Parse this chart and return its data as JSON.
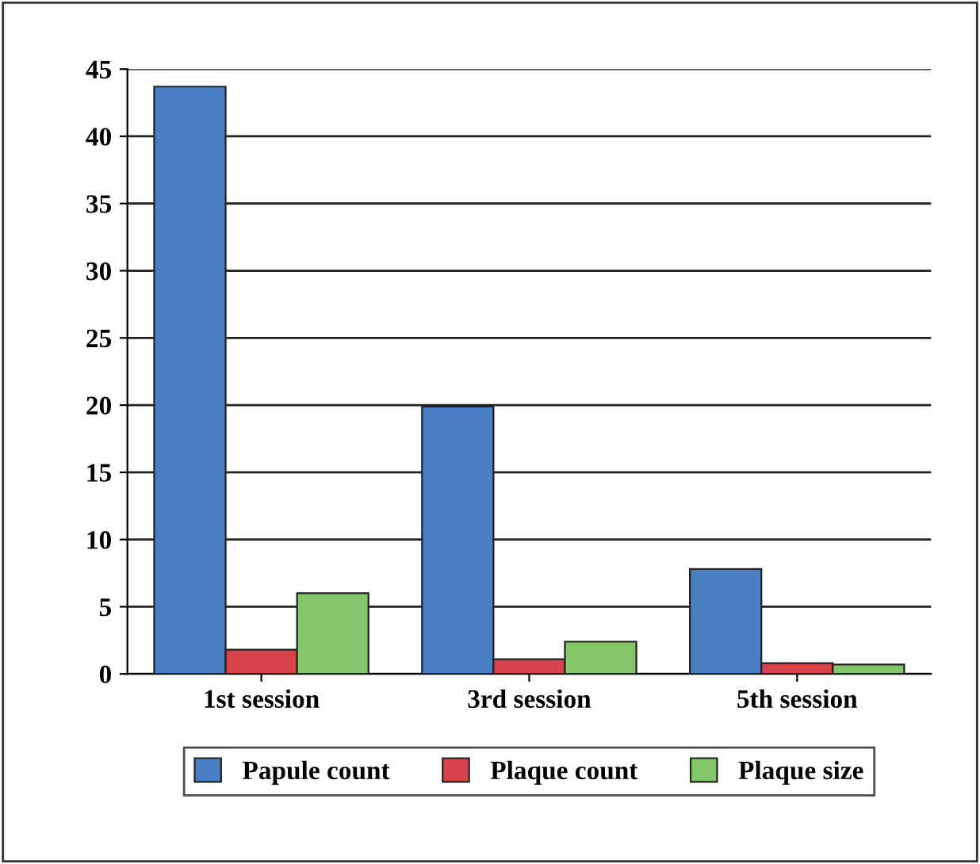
{
  "chart_data": {
    "type": "bar",
    "categories": [
      "1st session",
      "3rd session",
      "5th session"
    ],
    "series": [
      {
        "name": "Papule count",
        "color": "#4a7fc4",
        "values": [
          43.7,
          19.9,
          7.8
        ]
      },
      {
        "name": "Plaque count",
        "color": "#d9444c",
        "values": [
          1.8,
          1.1,
          0.8
        ]
      },
      {
        "name": "Plaque size",
        "color": "#86c66b",
        "values": [
          6.0,
          2.4,
          0.7
        ]
      }
    ],
    "ylim": [
      0,
      45
    ],
    "yticks": [
      0,
      5,
      10,
      15,
      20,
      25,
      30,
      35,
      40,
      45
    ],
    "grid": "y",
    "legend": "bottom"
  }
}
